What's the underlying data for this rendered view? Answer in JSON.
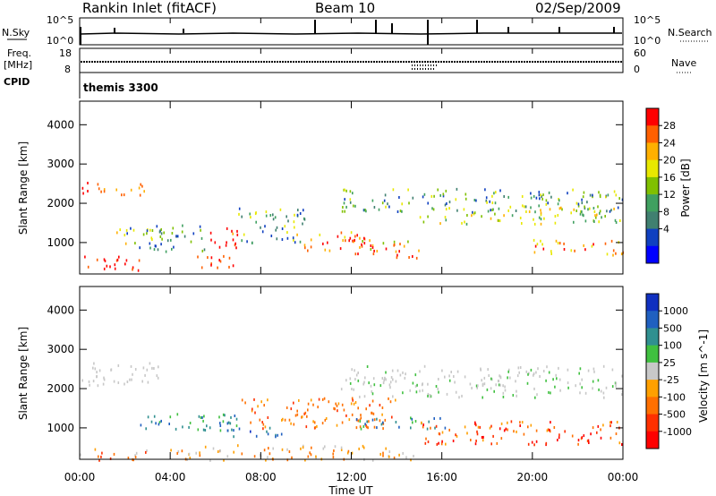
{
  "header": {
    "station": "Rankin Inlet (fitACF)",
    "beam": "Beam 10",
    "date": "02/Sep/2009"
  },
  "strips": {
    "nsky_label": "N.Sky",
    "nsearch_label": "N.Search",
    "left_ticks": [
      "10^5",
      "10^0"
    ],
    "right_ticks": [
      "10^5",
      "10^0"
    ],
    "freq_label_1": "Freq.",
    "freq_label_2": "[MHz]",
    "freq_ticks": [
      "18",
      "8"
    ],
    "nave_ticks": [
      "60",
      "0"
    ],
    "nave_label": "Nave",
    "cpid_label": "CPID",
    "cpid_value": "themis 3300"
  },
  "chart_data": [
    {
      "type": "heatmap",
      "name": "power",
      "ylabel": "Slant Range [km]",
      "yticks": [
        1000,
        2000,
        3000,
        4000
      ],
      "ylim": [
        200,
        4600
      ],
      "colorbar_label": "Power [dB]",
      "colorbar_ticks": [
        "28",
        "24",
        "20",
        "16",
        "12",
        "8",
        "4"
      ],
      "colorbar_colors": [
        "#ff0000",
        "#ff6000",
        "#ffb000",
        "#e8e800",
        "#80c000",
        "#40a060",
        "#408070",
        "#1040c0",
        "#0000ff"
      ]
    },
    {
      "type": "heatmap",
      "name": "velocity",
      "ylabel": "Slant Range [km]",
      "yticks": [
        1000,
        2000,
        3000,
        4000
      ],
      "ylim": [
        200,
        4600
      ],
      "colorbar_label": "Velocity [m s^-1]",
      "colorbar_ticks": [
        "1000",
        "500",
        "100",
        "25",
        "-25",
        "-100",
        "-500",
        "-1000"
      ],
      "colorbar_colors": [
        "#1030c0",
        "#2060c0",
        "#309090",
        "#40c040",
        "#c8c8c8",
        "#ffa000",
        "#ff7000",
        "#ff3000",
        "#ff0000"
      ]
    }
  ],
  "xaxis": {
    "ticks": [
      "00:00",
      "04:00",
      "08:00",
      "12:00",
      "16:00",
      "20:00",
      "00:00"
    ],
    "label": "Time UT"
  }
}
